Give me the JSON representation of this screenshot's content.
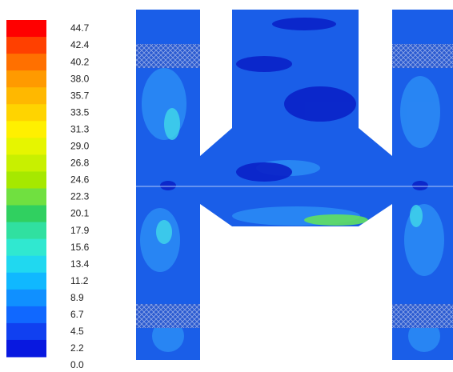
{
  "colorbar": {
    "labels": [
      "44.7",
      "42.4",
      "40.2",
      "38.0",
      "35.7",
      "33.5",
      "31.3",
      "29.0",
      "26.8",
      "24.6",
      "22.3",
      "20.1",
      "17.9",
      "15.6",
      "13.4",
      "11.2",
      "8.9",
      "6.7",
      "4.5",
      "2.2",
      "0.0"
    ],
    "colors": [
      "#ff0000",
      "#ff4000",
      "#ff7000",
      "#ff9a00",
      "#ffb800",
      "#ffd400",
      "#fff000",
      "#e6f500",
      "#c8f000",
      "#a6e800",
      "#70e040",
      "#30d060",
      "#30e0a0",
      "#30e8d0",
      "#20d8f0",
      "#10b8ff",
      "#1090ff",
      "#1068ff",
      "#1040f0",
      "#0818e0"
    ]
  }
}
